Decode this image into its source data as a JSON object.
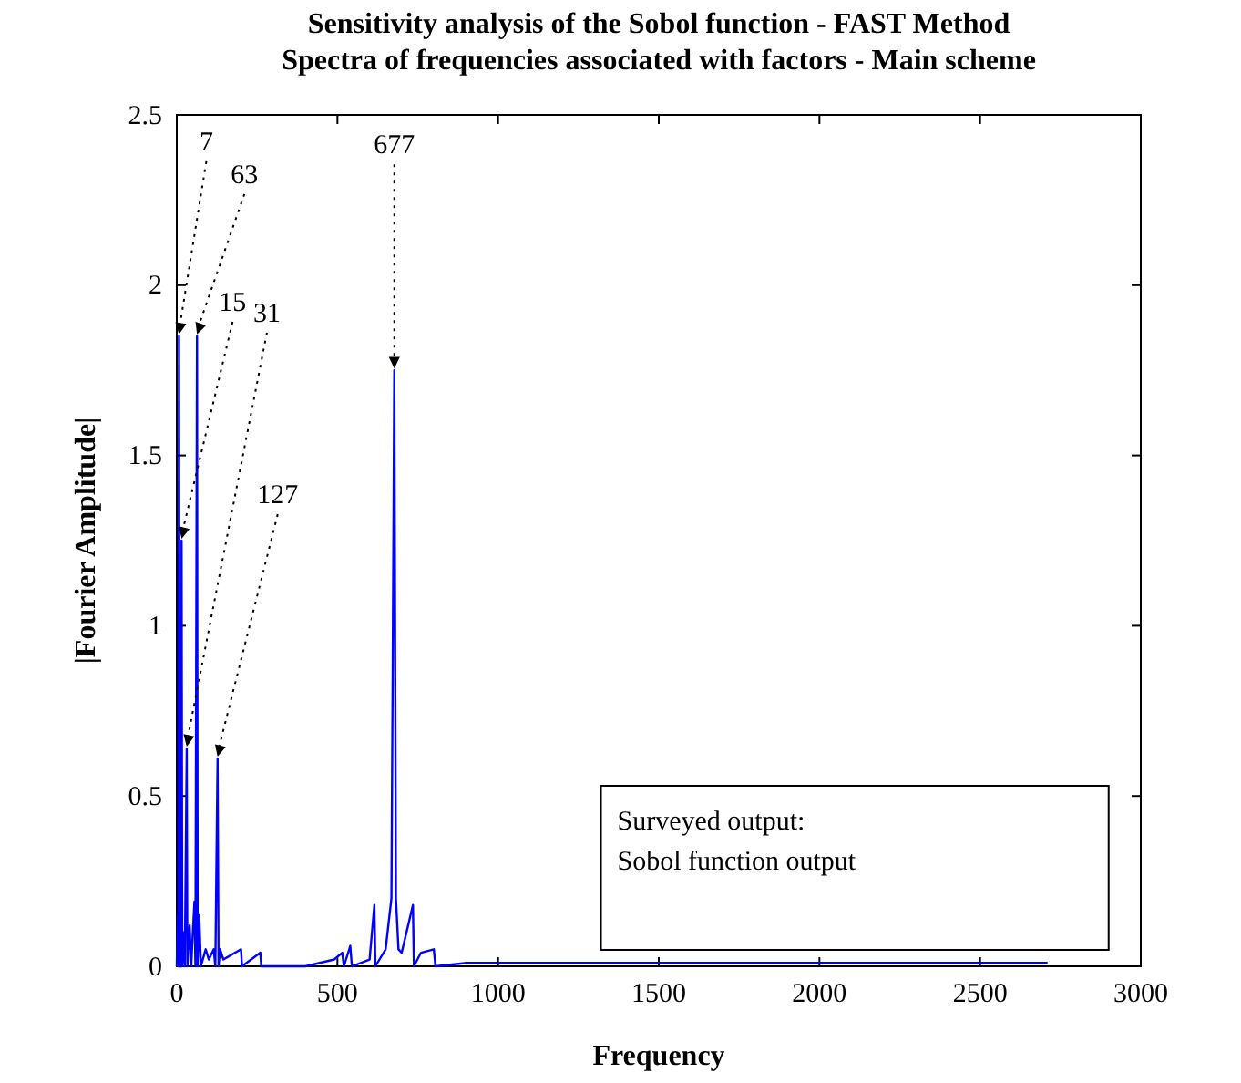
{
  "chart_data": {
    "type": "line",
    "title": "Sensitivity analysis of the Sobol function - FAST Method",
    "subtitle": "Spectra of frequencies associated with factors - Main scheme",
    "xlabel": "Frequency",
    "ylabel": "|Fourier Amplitude|",
    "series": [
      {
        "color": "#0000ff",
        "x": [
          0,
          3,
          5,
          7,
          9,
          12,
          14,
          15,
          17,
          22,
          25,
          31,
          33,
          40,
          45,
          50,
          55,
          58,
          63,
          65,
          70,
          75,
          90,
          100,
          115,
          120,
          127,
          130,
          135,
          145,
          200,
          203,
          260,
          263,
          400,
          490,
          515,
          520,
          540,
          545,
          600,
          615,
          618,
          650,
          668,
          672,
          677,
          682,
          690,
          700,
          735,
          738,
          760,
          800,
          805,
          900,
          1000,
          1500,
          2000,
          2710
        ],
        "values": [
          0,
          0.15,
          0,
          1.85,
          0,
          0.2,
          0,
          1.25,
          0,
          0.1,
          0,
          0.64,
          0,
          0.12,
          0,
          0.1,
          0.19,
          0,
          1.85,
          0,
          0.15,
          0,
          0.05,
          0.02,
          0.05,
          0,
          0.61,
          0,
          0.05,
          0.02,
          0.05,
          0,
          0.04,
          0,
          0,
          0.02,
          0.04,
          0,
          0.06,
          0,
          0.02,
          0.18,
          0,
          0.05,
          0.2,
          0.87,
          1.75,
          0.2,
          0.05,
          0.04,
          0.18,
          0,
          0.04,
          0.05,
          0,
          0.01,
          0.01,
          0.01,
          0.01,
          0.01
        ]
      }
    ],
    "xlim": [
      0,
      3000
    ],
    "xticks": [
      0,
      500,
      1000,
      1500,
      2000,
      2500,
      3000
    ],
    "ylim": [
      0,
      2.5
    ],
    "yticks": [
      0,
      0.5,
      1,
      1.5,
      2,
      2.5
    ],
    "annotations": [
      {
        "text": "7",
        "x": 7,
        "y": 1.85
      },
      {
        "text": "63",
        "x": 63,
        "y": 1.85
      },
      {
        "text": "15",
        "x": 15,
        "y": 1.25
      },
      {
        "text": "31",
        "x": 31,
        "y": 0.64
      },
      {
        "text": "127",
        "x": 127,
        "y": 0.61
      },
      {
        "text": "677",
        "x": 677,
        "y": 1.75
      },
      "Surveyed output:",
      "Sobol function output"
    ]
  }
}
